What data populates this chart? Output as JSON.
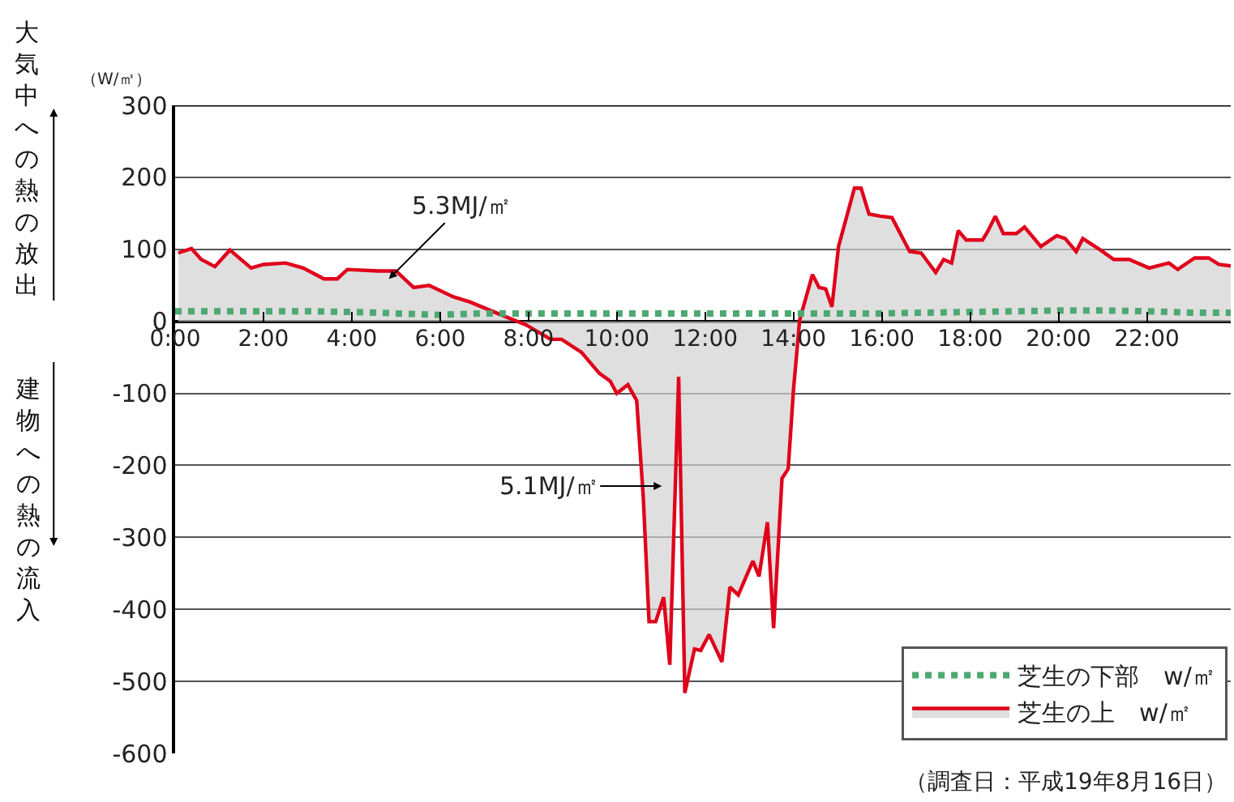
{
  "chart_data": {
    "type": "line",
    "ylabel": "（W/㎡）",
    "annotations": [
      "大気中への熱の放出",
      "建物への熱の流入",
      "（調査日：平成19年8月16日）",
      {
        "text": "5.3MJ/㎡",
        "x": 4.84,
        "y": 59
      },
      "5.1MJ/㎡"
    ],
    "xlim": [
      0,
      23.9
    ],
    "xticks": [
      {
        "value": 0,
        "label": "0:00"
      },
      {
        "value": 2,
        "label": "2:00"
      },
      {
        "value": 4,
        "label": "4:00"
      },
      {
        "value": 6,
        "label": "6:00"
      },
      {
        "value": 8,
        "label": "8:00"
      },
      {
        "value": 10,
        "label": "10:00"
      },
      {
        "value": 12,
        "label": "12:00"
      },
      {
        "value": 14,
        "label": "14:00"
      },
      {
        "value": 16,
        "label": "16:00"
      },
      {
        "value": 18,
        "label": "18:00"
      },
      {
        "value": 20,
        "label": "20:00"
      },
      {
        "value": 22,
        "label": "22:00"
      }
    ],
    "ylim": [
      -600,
      300
    ],
    "yticks": [
      -600,
      -500,
      -400,
      -300,
      -200,
      -100,
      0,
      100,
      200,
      300
    ],
    "grid": "y",
    "legend": "bottom right",
    "marker": "none",
    "series": [
      {
        "name": "芝生の下部　w/㎡",
        "color": "#4ea872",
        "line_style": "dotted",
        "x": [
          0,
          1,
          2,
          3,
          4,
          5,
          6,
          7,
          8,
          9,
          10,
          11,
          12,
          13,
          14,
          15,
          16,
          17,
          18,
          19,
          20,
          21,
          22,
          23,
          23.9
        ],
        "values": [
          14,
          14,
          14,
          14,
          13,
          11,
          9,
          11,
          11,
          11,
          11,
          11,
          11,
          11,
          11,
          11,
          11,
          12,
          13,
          14,
          15,
          15,
          14,
          12,
          12
        ]
      },
      {
        "name": "芝生の上　w/㎡",
        "color": "#e0001b",
        "type": "area",
        "line_style": "solid",
        "x": [
          0.07,
          0.37,
          0.59,
          0.9,
          1.24,
          1.72,
          2.0,
          2.5,
          2.9,
          3.37,
          3.67,
          3.9,
          4.6,
          5.0,
          5.4,
          5.75,
          6.3,
          6.67,
          7.3,
          7.95,
          8.5,
          8.75,
          9.2,
          9.6,
          9.85,
          10.0,
          10.25,
          10.45,
          10.6,
          10.73,
          10.88,
          11.06,
          11.2,
          11.4,
          11.54,
          11.76,
          11.9,
          12.09,
          12.38,
          12.56,
          12.75,
          13.08,
          13.22,
          13.41,
          13.55,
          13.74,
          13.88,
          14.0,
          14.14,
          14.43,
          14.58,
          14.73,
          14.87,
          15.02,
          15.38,
          15.53,
          15.71,
          15.97,
          16.23,
          16.63,
          16.89,
          17.22,
          17.4,
          17.58,
          17.73,
          17.91,
          18.28,
          18.39,
          18.57,
          18.75,
          19.05,
          19.23,
          19.6,
          19.96,
          20.15,
          20.4,
          20.55,
          20.95,
          21.25,
          21.6,
          22.05,
          22.5,
          22.7,
          23.08,
          23.4,
          23.63,
          23.9
        ],
        "values": [
          95,
          101,
          86,
          76,
          99,
          74,
          79,
          81,
          74,
          59,
          59,
          72,
          70,
          70,
          47,
          50,
          34,
          27,
          11,
          -5,
          -25,
          -25,
          -43,
          -72,
          -83,
          -100,
          -88,
          -110,
          -245,
          -417,
          -417,
          -383,
          -477,
          -77,
          -516,
          -455,
          -457,
          -435,
          -473,
          -369,
          -380,
          -333,
          -354,
          -279,
          -426,
          -218,
          -205,
          -95,
          2,
          65,
          47,
          45,
          20,
          104,
          185,
          185,
          149,
          146,
          144,
          97,
          95,
          68,
          86,
          81,
          126,
          113,
          113,
          124,
          146,
          122,
          122,
          131,
          104,
          119,
          115,
          97,
          115,
          99,
          86,
          86,
          74,
          81,
          72,
          88,
          88,
          79,
          77
        ]
      }
    ]
  }
}
